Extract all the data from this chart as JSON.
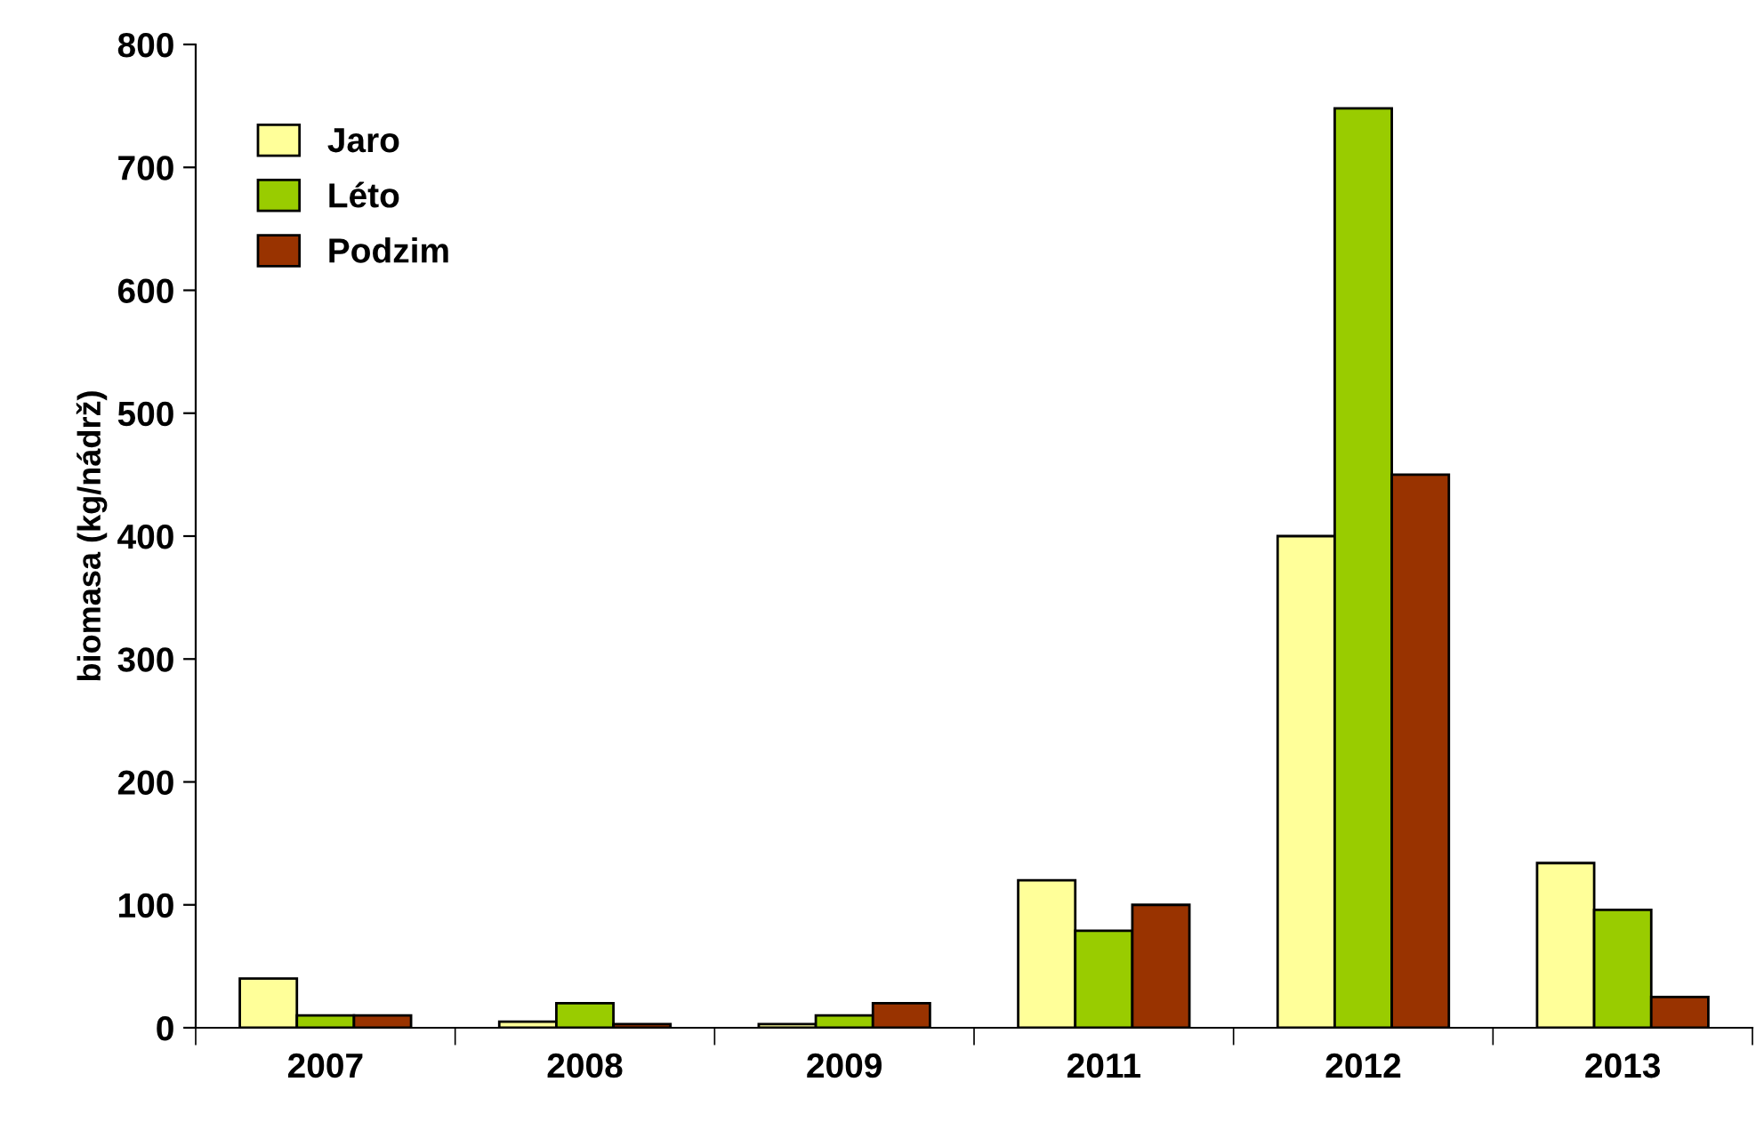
{
  "chart_data": {
    "type": "bar",
    "ylabel": "biomasa (kg/nádrž)",
    "categories": [
      "2007",
      "2008",
      "2009",
      "2011",
      "2012",
      "2013"
    ],
    "series": [
      {
        "name": "Jaro",
        "color": "#ffff99",
        "values": [
          40,
          5,
          3,
          120,
          400,
          134
        ]
      },
      {
        "name": "Léto",
        "color": "#99cc00",
        "values": [
          10,
          20,
          10,
          79,
          748,
          96
        ]
      },
      {
        "name": "Podzim",
        "color": "#993300",
        "values": [
          10,
          3,
          20,
          100,
          450,
          25
        ]
      }
    ],
    "ylim": [
      0,
      800
    ],
    "yticks": [
      0,
      100,
      200,
      300,
      400,
      500,
      600,
      700,
      800
    ],
    "grid": false,
    "legend": "top left"
  }
}
